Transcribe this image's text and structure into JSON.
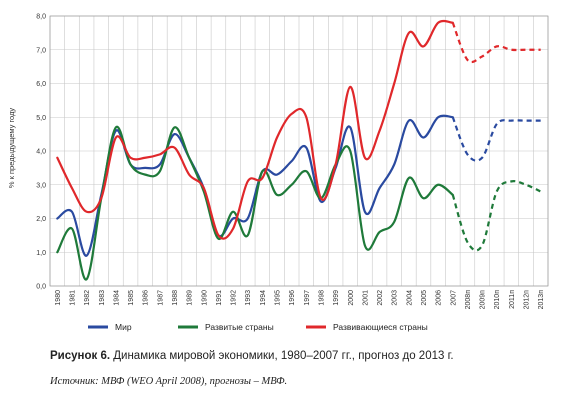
{
  "chart_data": {
    "type": "line",
    "title": "",
    "xlabel": "",
    "ylabel": "% к предыдущему году",
    "ylim": [
      0,
      8
    ],
    "yticks": [
      "0,0",
      "1,0",
      "2,0",
      "3,0",
      "4,0",
      "5,0",
      "6,0",
      "7,0",
      "8,0"
    ],
    "categories": [
      "1980",
      "1981",
      "1982",
      "1983",
      "1984",
      "1985",
      "1986",
      "1987",
      "1988",
      "1989",
      "1990",
      "1991",
      "1992",
      "1993",
      "1994",
      "1995",
      "1996",
      "1997",
      "1998",
      "1999",
      "2000",
      "2001",
      "2002",
      "2003",
      "2004",
      "2005",
      "2006",
      "2007",
      "2008п",
      "2009п",
      "2010п",
      "2011п",
      "2012п",
      "2013п"
    ],
    "forecast_start_index": 27,
    "grid": true,
    "legend_position": "bottom",
    "series": [
      {
        "name": "Мир",
        "color": "#2a4aa0",
        "values": [
          2.0,
          2.2,
          0.9,
          2.7,
          4.6,
          3.6,
          3.5,
          3.6,
          4.5,
          3.8,
          2.9,
          1.5,
          2.0,
          2.0,
          3.4,
          3.3,
          3.7,
          4.1,
          2.5,
          3.5,
          4.7,
          2.2,
          2.9,
          3.6,
          4.9,
          4.4,
          5.0,
          5.0,
          3.9,
          3.8,
          4.8,
          4.9,
          4.9,
          4.9
        ]
      },
      {
        "name": "Развитые страны",
        "color": "#1f7a3a",
        "values": [
          1.0,
          1.7,
          0.2,
          2.6,
          4.7,
          3.6,
          3.3,
          3.4,
          4.7,
          3.8,
          2.8,
          1.4,
          2.2,
          1.5,
          3.4,
          2.7,
          3.0,
          3.4,
          2.6,
          3.6,
          4.0,
          1.2,
          1.6,
          1.9,
          3.2,
          2.6,
          3.0,
          2.7,
          1.3,
          1.2,
          2.8,
          3.1,
          3.0,
          2.8
        ]
      },
      {
        "name": "Развивающиеся страны",
        "color": "#e0282b",
        "values": [
          3.8,
          2.9,
          2.2,
          2.6,
          4.4,
          3.8,
          3.8,
          3.9,
          4.1,
          3.3,
          2.9,
          1.5,
          1.7,
          3.1,
          3.2,
          4.4,
          5.1,
          5.0,
          2.6,
          3.6,
          5.9,
          3.8,
          4.6,
          6.0,
          7.5,
          7.1,
          7.8,
          7.8,
          6.7,
          6.8,
          7.1,
          7.0,
          7.0,
          7.0
        ]
      }
    ]
  },
  "caption": {
    "label": "Рисунок 6.",
    "text": " Динамика мировой экономики, 1980–2007 гг., прогноз до 2013 г."
  },
  "source": {
    "text": "Источник:  МВФ (WEO April 2008), прогнозы – МВФ."
  }
}
